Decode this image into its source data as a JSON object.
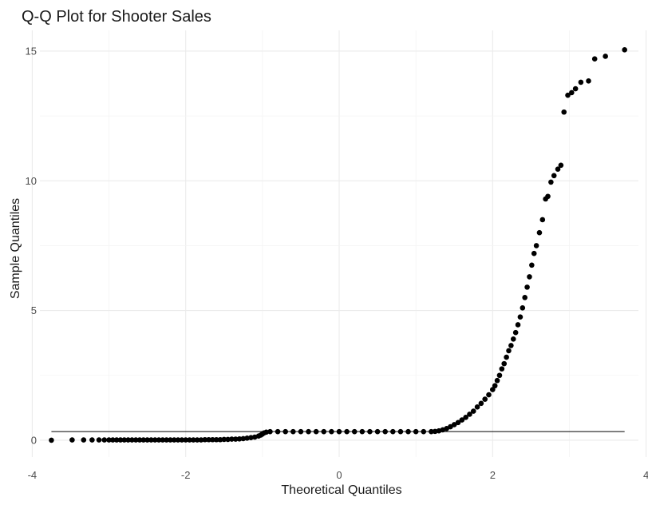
{
  "chart_data": {
    "type": "scatter",
    "title": "Q-Q Plot for Shooter Sales",
    "xlabel": "Theoretical Quantiles",
    "ylabel": "Sample Quantiles",
    "xlim": [
      -3.9,
      3.9
    ],
    "ylim": [
      -0.65,
      15.8
    ],
    "x_ticks": [
      -4,
      -2,
      0,
      2,
      4
    ],
    "y_ticks": [
      0,
      5,
      10,
      15
    ],
    "grid": true,
    "legend": "none",
    "point_color": "#000000",
    "line_color": "#000000",
    "reference_line": {
      "x": [
        -3.75,
        3.72
      ],
      "y": [
        0.33,
        0.33
      ]
    },
    "points": [
      [
        -3.75,
        0.0
      ],
      [
        -3.48,
        0.01
      ],
      [
        -3.33,
        0.01
      ],
      [
        -3.22,
        0.01
      ],
      [
        -3.13,
        0.01
      ],
      [
        -3.06,
        0.01
      ],
      [
        -3.0,
        0.01
      ],
      [
        -2.95,
        0.01
      ],
      [
        -2.9,
        0.01
      ],
      [
        -2.85,
        0.01
      ],
      [
        -2.8,
        0.01
      ],
      [
        -2.75,
        0.01
      ],
      [
        -2.7,
        0.01
      ],
      [
        -2.65,
        0.01
      ],
      [
        -2.6,
        0.01
      ],
      [
        -2.55,
        0.01
      ],
      [
        -2.5,
        0.01
      ],
      [
        -2.45,
        0.01
      ],
      [
        -2.4,
        0.01
      ],
      [
        -2.35,
        0.01
      ],
      [
        -2.3,
        0.01
      ],
      [
        -2.25,
        0.01
      ],
      [
        -2.2,
        0.01
      ],
      [
        -2.15,
        0.01
      ],
      [
        -2.1,
        0.01
      ],
      [
        -2.05,
        0.01
      ],
      [
        -2.0,
        0.01
      ],
      [
        -1.95,
        0.01
      ],
      [
        -1.9,
        0.01
      ],
      [
        -1.85,
        0.01
      ],
      [
        -1.8,
        0.01
      ],
      [
        -1.75,
        0.02
      ],
      [
        -1.7,
        0.02
      ],
      [
        -1.65,
        0.02
      ],
      [
        -1.6,
        0.02
      ],
      [
        -1.55,
        0.02
      ],
      [
        -1.5,
        0.03
      ],
      [
        -1.45,
        0.03
      ],
      [
        -1.4,
        0.04
      ],
      [
        -1.35,
        0.04
      ],
      [
        -1.3,
        0.05
      ],
      [
        -1.25,
        0.06
      ],
      [
        -1.2,
        0.08
      ],
      [
        -1.15,
        0.1
      ],
      [
        -1.1,
        0.12
      ],
      [
        -1.05,
        0.16
      ],
      [
        -1.02,
        0.2
      ],
      [
        -1.0,
        0.24
      ],
      [
        -0.98,
        0.28
      ],
      [
        -0.95,
        0.31
      ],
      [
        -0.9,
        0.33
      ],
      [
        -0.8,
        0.33
      ],
      [
        -0.7,
        0.33
      ],
      [
        -0.6,
        0.33
      ],
      [
        -0.5,
        0.33
      ],
      [
        -0.4,
        0.33
      ],
      [
        -0.3,
        0.33
      ],
      [
        -0.2,
        0.33
      ],
      [
        -0.1,
        0.33
      ],
      [
        0.0,
        0.33
      ],
      [
        0.1,
        0.33
      ],
      [
        0.2,
        0.33
      ],
      [
        0.3,
        0.33
      ],
      [
        0.4,
        0.33
      ],
      [
        0.5,
        0.33
      ],
      [
        0.6,
        0.33
      ],
      [
        0.7,
        0.33
      ],
      [
        0.8,
        0.33
      ],
      [
        0.9,
        0.33
      ],
      [
        1.0,
        0.33
      ],
      [
        1.1,
        0.33
      ],
      [
        1.2,
        0.33
      ],
      [
        1.25,
        0.34
      ],
      [
        1.3,
        0.36
      ],
      [
        1.35,
        0.4
      ],
      [
        1.4,
        0.45
      ],
      [
        1.45,
        0.52
      ],
      [
        1.5,
        0.6
      ],
      [
        1.55,
        0.68
      ],
      [
        1.6,
        0.78
      ],
      [
        1.65,
        0.88
      ],
      [
        1.7,
        1.0
      ],
      [
        1.75,
        1.12
      ],
      [
        1.8,
        1.28
      ],
      [
        1.85,
        1.42
      ],
      [
        1.9,
        1.58
      ],
      [
        1.95,
        1.75
      ],
      [
        2.0,
        1.95
      ],
      [
        2.03,
        2.1
      ],
      [
        2.06,
        2.3
      ],
      [
        2.09,
        2.5
      ],
      [
        2.12,
        2.75
      ],
      [
        2.15,
        2.95
      ],
      [
        2.18,
        3.2
      ],
      [
        2.21,
        3.45
      ],
      [
        2.24,
        3.65
      ],
      [
        2.27,
        3.9
      ],
      [
        2.3,
        4.15
      ],
      [
        2.33,
        4.45
      ],
      [
        2.36,
        4.75
      ],
      [
        2.39,
        5.1
      ],
      [
        2.42,
        5.5
      ],
      [
        2.45,
        5.9
      ],
      [
        2.48,
        6.3
      ],
      [
        2.51,
        6.75
      ],
      [
        2.54,
        7.2
      ],
      [
        2.57,
        7.5
      ],
      [
        2.61,
        8.0
      ],
      [
        2.65,
        8.5
      ],
      [
        2.69,
        9.3
      ],
      [
        2.72,
        9.4
      ],
      [
        2.76,
        9.95
      ],
      [
        2.8,
        10.2
      ],
      [
        2.85,
        10.45
      ],
      [
        2.89,
        10.6
      ],
      [
        2.93,
        12.65
      ],
      [
        2.98,
        13.3
      ],
      [
        3.03,
        13.4
      ],
      [
        3.08,
        13.55
      ],
      [
        3.15,
        13.8
      ],
      [
        3.25,
        13.85
      ],
      [
        3.33,
        14.7
      ],
      [
        3.47,
        14.8
      ],
      [
        3.72,
        15.05
      ]
    ]
  }
}
